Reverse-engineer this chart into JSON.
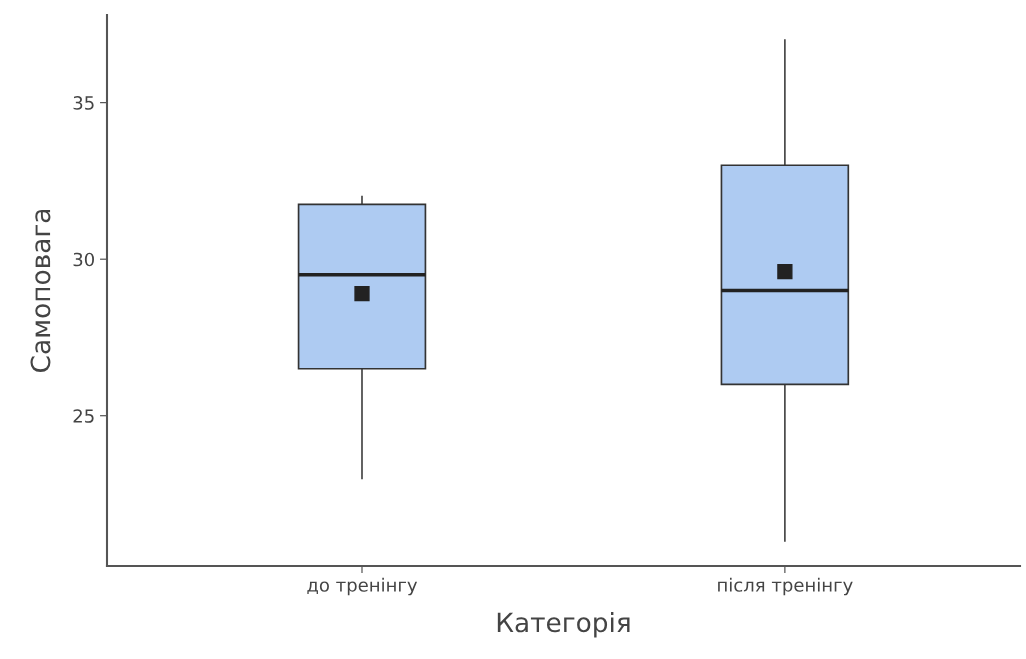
{
  "chart_data": {
    "type": "box",
    "xlabel": "Категорія",
    "ylabel": "Самоповага",
    "categories": [
      "до тренінгу",
      "після тренінгу"
    ],
    "boxes": [
      {
        "low": 23,
        "q1": 26.5,
        "median": 29.5,
        "q3": 31.75,
        "high": 32,
        "mean": 28.9
      },
      {
        "low": 21,
        "q1": 26,
        "median": 29,
        "q3": 33,
        "high": 37,
        "mean": 29.6
      }
    ],
    "color": "#aecbf2",
    "ylim": [
      20.2,
      37.8
    ],
    "yticks": [
      25,
      30,
      35
    ],
    "marker": "square"
  }
}
